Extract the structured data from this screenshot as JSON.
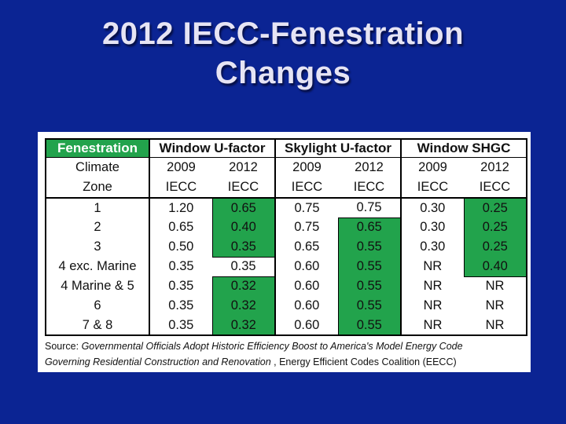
{
  "colors": {
    "background": "#0b2493",
    "panel": "#ffffff",
    "highlight_green": "#22a34c",
    "title_text": "#e6e4f4",
    "table_border": "#000000"
  },
  "slide": {
    "title": {
      "line1": "2012 IECC-Fenestration",
      "line2": "Changes"
    }
  },
  "table": {
    "corner_label": "Fenestration",
    "row_header": {
      "line1": "Climate",
      "line2": "Zone"
    },
    "groups": [
      {
        "label": "Window U-factor"
      },
      {
        "label": "Skylight U-factor"
      },
      {
        "label": "Window SHGC"
      }
    ],
    "year_headers": [
      {
        "year": "2009",
        "code": "IECC"
      },
      {
        "year": "2012",
        "code": "IECC"
      },
      {
        "year": "2009",
        "code": "IECC"
      },
      {
        "year": "2012",
        "code": "IECC"
      },
      {
        "year": "2009",
        "code": "IECC"
      },
      {
        "year": "2012",
        "code": "IECC"
      }
    ],
    "rows": [
      {
        "zone": "1",
        "values": [
          "1.20",
          "0.65",
          "0.75",
          "0.75",
          "0.30",
          "0.25"
        ],
        "highlight": [
          false,
          true,
          false,
          false,
          false,
          true
        ]
      },
      {
        "zone": "2",
        "values": [
          "0.65",
          "0.40",
          "0.75",
          "0.65",
          "0.30",
          "0.25"
        ],
        "highlight": [
          false,
          true,
          false,
          true,
          false,
          true
        ]
      },
      {
        "zone": "3",
        "values": [
          "0.50",
          "0.35",
          "0.65",
          "0.55",
          "0.30",
          "0.25"
        ],
        "highlight": [
          false,
          true,
          false,
          true,
          false,
          true
        ]
      },
      {
        "zone": "4 exc. Marine",
        "values": [
          "0.35",
          "0.35",
          "0.60",
          "0.55",
          "NR",
          "0.40"
        ],
        "highlight": [
          false,
          false,
          false,
          true,
          false,
          true
        ]
      },
      {
        "zone": "4 Marine & 5",
        "values": [
          "0.35",
          "0.32",
          "0.60",
          "0.55",
          "NR",
          "NR"
        ],
        "highlight": [
          false,
          true,
          false,
          true,
          false,
          false
        ]
      },
      {
        "zone": "6",
        "values": [
          "0.35",
          "0.32",
          "0.60",
          "0.55",
          "NR",
          "NR"
        ],
        "highlight": [
          false,
          true,
          false,
          true,
          false,
          false
        ]
      },
      {
        "zone": "7 & 8",
        "values": [
          "0.35",
          "0.32",
          "0.60",
          "0.55",
          "NR",
          "NR"
        ],
        "highlight": [
          false,
          true,
          false,
          true,
          false,
          false
        ]
      }
    ]
  },
  "source": {
    "prefix": "Source: ",
    "line1_italic": "Governmental Officials Adopt Historic Efficiency Boost to America's Model Energy Code",
    "line2_italic": "Governing Residential Construction and Renovation",
    "line2_roman": " , Energy Efficient Codes Coalition (EECC)"
  }
}
